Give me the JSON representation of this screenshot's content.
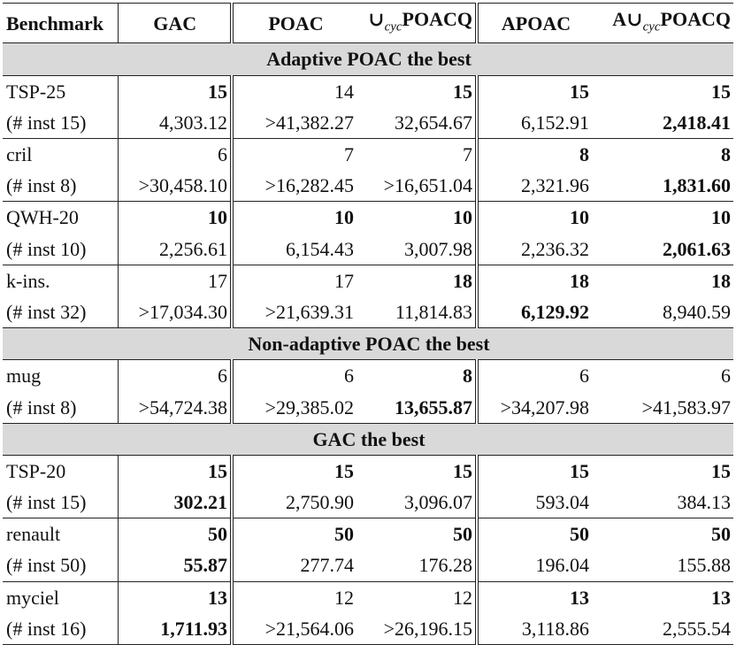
{
  "headers": [
    "Benchmark",
    "GAC",
    "POAC",
    "∪cycPOACQ",
    "APOAC",
    "A∪cycPOACQ"
  ],
  "header_parts": {
    "cup": "∪",
    "cyc": "cyc",
    "poacq": "POACQ",
    "a_prefix": "A"
  },
  "sections": [
    {
      "title": "Adaptive POAC the best",
      "groups": [
        {
          "name": "TSP-25",
          "inst": "(# inst 15)",
          "solved": [
            "15",
            "14",
            "15",
            "15",
            "15"
          ],
          "solved_bold": [
            true,
            false,
            true,
            true,
            true
          ],
          "time": [
            "4,303.12",
            ">41,382.27",
            "32,654.67",
            "6,152.91",
            "2,418.41"
          ],
          "time_bold": [
            false,
            false,
            false,
            false,
            true
          ]
        },
        {
          "name": "cril",
          "inst": "(# inst 8)",
          "solved": [
            "6",
            "7",
            "7",
            "8",
            "8"
          ],
          "solved_bold": [
            false,
            false,
            false,
            true,
            true
          ],
          "time": [
            ">30,458.10",
            ">16,282.45",
            ">16,651.04",
            "2,321.96",
            "1,831.60"
          ],
          "time_bold": [
            false,
            false,
            false,
            false,
            true
          ]
        },
        {
          "name": "QWH-20",
          "inst": "(# inst 10)",
          "solved": [
            "10",
            "10",
            "10",
            "10",
            "10"
          ],
          "solved_bold": [
            true,
            true,
            true,
            true,
            true
          ],
          "time": [
            "2,256.61",
            "6,154.43",
            "3,007.98",
            "2,236.32",
            "2,061.63"
          ],
          "time_bold": [
            false,
            false,
            false,
            false,
            true
          ]
        },
        {
          "name": "k-ins.",
          "inst": "(# inst 32)",
          "solved": [
            "17",
            "17",
            "18",
            "18",
            "18"
          ],
          "solved_bold": [
            false,
            false,
            true,
            true,
            true
          ],
          "time": [
            ">17,034.30",
            ">21,639.31",
            "11,814.83",
            "6,129.92",
            "8,940.59"
          ],
          "time_bold": [
            false,
            false,
            false,
            true,
            false
          ]
        }
      ]
    },
    {
      "title": "Non-adaptive POAC the best",
      "groups": [
        {
          "name": "mug",
          "inst": "(# inst 8)",
          "solved": [
            "6",
            "6",
            "8",
            "6",
            "6"
          ],
          "solved_bold": [
            false,
            false,
            true,
            false,
            false
          ],
          "time": [
            ">54,724.38",
            ">29,385.02",
            "13,655.87",
            ">34,207.98",
            ">41,583.97"
          ],
          "time_bold": [
            false,
            false,
            true,
            false,
            false
          ]
        }
      ]
    },
    {
      "title": "GAC the best",
      "groups": [
        {
          "name": "TSP-20",
          "inst": "(# inst 15)",
          "solved": [
            "15",
            "15",
            "15",
            "15",
            "15"
          ],
          "solved_bold": [
            true,
            true,
            true,
            true,
            true
          ],
          "time": [
            "302.21",
            "2,750.90",
            "3,096.07",
            "593.04",
            "384.13"
          ],
          "time_bold": [
            true,
            false,
            false,
            false,
            false
          ]
        },
        {
          "name": "renault",
          "inst": "(# inst 50)",
          "solved": [
            "50",
            "50",
            "50",
            "50",
            "50"
          ],
          "solved_bold": [
            true,
            true,
            true,
            true,
            true
          ],
          "time": [
            "55.87",
            "277.74",
            "176.28",
            "196.04",
            "155.88"
          ],
          "time_bold": [
            true,
            false,
            false,
            false,
            false
          ]
        },
        {
          "name": "myciel",
          "inst": "(# inst 16)",
          "solved": [
            "13",
            "12",
            "12",
            "13",
            "13"
          ],
          "solved_bold": [
            true,
            false,
            false,
            true,
            true
          ],
          "time": [
            "1,711.93",
            ">21,564.06",
            ">26,196.15",
            "3,118.86",
            "2,555.54"
          ],
          "time_bold": [
            true,
            false,
            false,
            false,
            false
          ]
        }
      ]
    }
  ]
}
